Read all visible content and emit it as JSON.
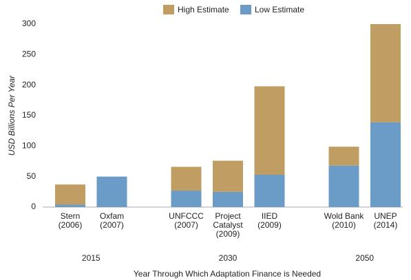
{
  "chart_data": {
    "type": "stacked-bar",
    "groups": [
      {
        "name": "2015",
        "categories": [
          [
            "Stern",
            "(2006)"
          ],
          [
            "Oxfam",
            "(2007)"
          ]
        ]
      },
      {
        "name": "2030",
        "categories": [
          [
            "UNFCCC",
            "(2007)"
          ],
          [
            "Project",
            "Catalyst",
            "(2009)"
          ],
          [
            "IIED",
            "(2009)"
          ]
        ]
      },
      {
        "name": "2050",
        "categories": [
          [
            "Wold Bank",
            "(2010)"
          ],
          [
            "UNEP",
            "(2014)"
          ]
        ]
      }
    ],
    "series": [
      {
        "name": "Low Estimate",
        "color": "#6b9bc7",
        "values": [
          4,
          50,
          27,
          25,
          53,
          68,
          139
        ]
      },
      {
        "name": "High Estimate",
        "color": "#c09e63",
        "values": [
          33,
          0,
          39,
          51,
          145,
          31,
          161
        ]
      }
    ],
    "ylabel": "USD Billions Per Year",
    "xlabel": "Year Through Which Adaptation Finance is Needed",
    "ylim": [
      0,
      300
    ],
    "yticks": [
      0,
      50,
      100,
      150,
      200,
      250,
      300
    ],
    "grid": false,
    "legend": "top"
  }
}
